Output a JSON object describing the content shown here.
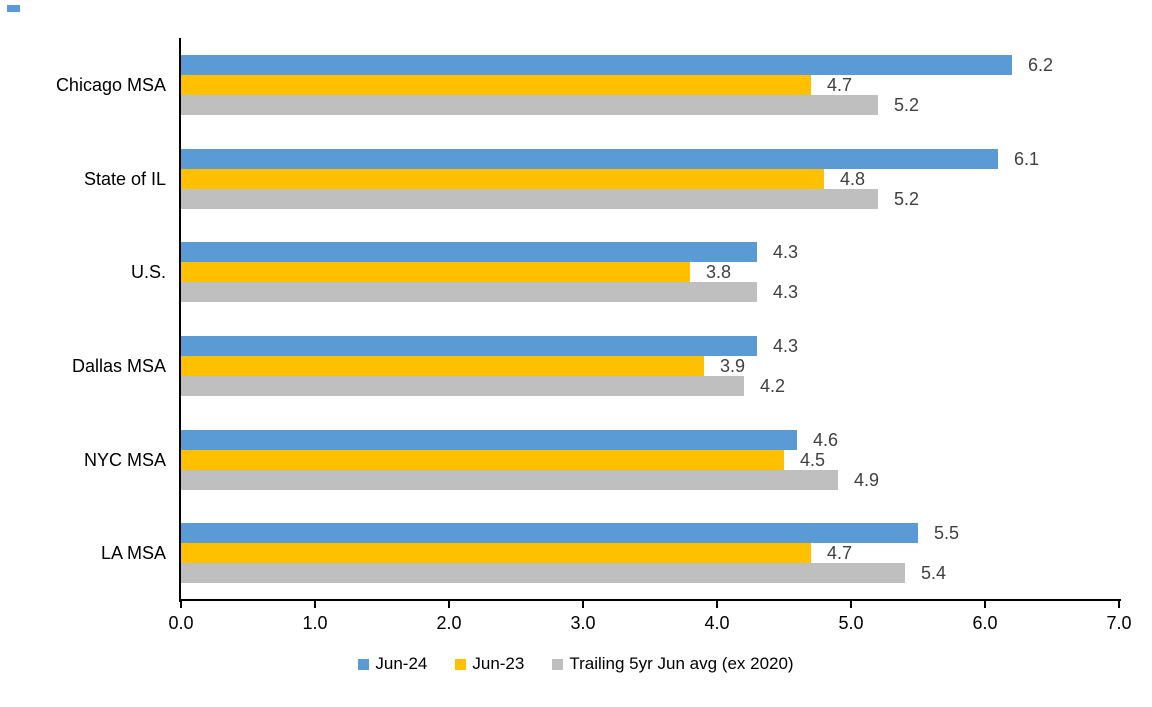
{
  "page": {
    "background": "#FFFFFF"
  },
  "chart_data": {
    "type": "bar",
    "orientation": "horizontal",
    "title": "",
    "xlabel": "",
    "ylabel": "",
    "categories": [
      "Chicago MSA",
      "State of IL",
      "U.S.",
      "Dallas MSA",
      "NYC MSA",
      "LA MSA"
    ],
    "series": [
      {
        "name": "Jun-24",
        "color": "#5B9BD5",
        "values": [
          6.2,
          6.1,
          4.3,
          4.3,
          4.6,
          5.5
        ]
      },
      {
        "name": "Jun-23",
        "color": "#FFC000",
        "values": [
          4.7,
          4.8,
          3.8,
          3.9,
          4.5,
          4.7
        ]
      },
      {
        "name": "Trailing 5yr Jun avg (ex 2020)",
        "color": "#BFBFBF",
        "values": [
          5.2,
          5.2,
          4.3,
          4.2,
          4.9,
          5.4
        ]
      }
    ],
    "x_axis": {
      "min": 0,
      "max": 7,
      "tick_labels": [
        "0.0",
        "1.0",
        "2.0",
        "3.0",
        "4.0",
        "5.0",
        "6.0",
        "7.0"
      ],
      "line_color": "#000000"
    },
    "value_labels": {
      "show": true,
      "decimals": 1,
      "color": "#404040"
    },
    "grid": false,
    "legend": {
      "position": "bottom"
    }
  }
}
